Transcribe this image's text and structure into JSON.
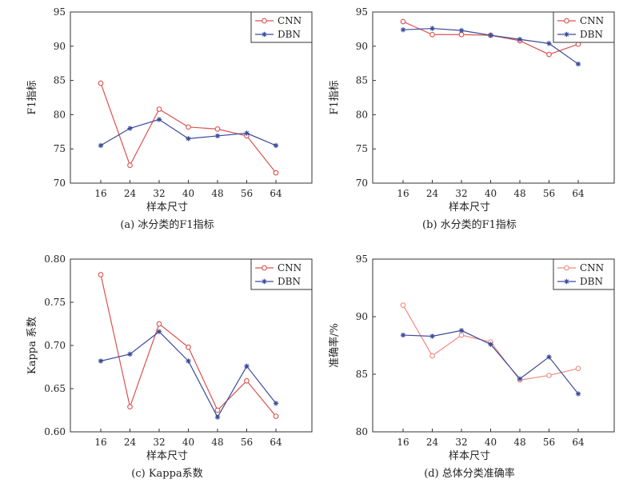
{
  "chart_data": [
    {
      "type": "line",
      "id": "a",
      "caption": "(a) 冰分类的F1指标",
      "xlabel": "样本尺寸",
      "ylabel": "F1指标",
      "categories": [
        "16",
        "24",
        "32",
        "40",
        "48",
        "56",
        "64"
      ],
      "ylim": [
        70,
        95
      ],
      "yticks": [
        "70",
        "75",
        "80",
        "85",
        "90",
        "95"
      ],
      "yticks_values": [
        70,
        75,
        80,
        85,
        90,
        95
      ],
      "legend": "top-right",
      "series": [
        {
          "name": "CNN",
          "color": "#d9534f",
          "marker": "circle",
          "values": [
            84.6,
            72.6,
            80.8,
            78.2,
            77.9,
            76.9,
            71.5
          ]
        },
        {
          "name": "DBN",
          "color": "#3b4a9a",
          "marker": "star",
          "values": [
            75.5,
            78.0,
            79.3,
            76.5,
            76.9,
            77.3,
            75.5
          ]
        }
      ]
    },
    {
      "type": "line",
      "id": "b",
      "caption": "(b) 水分类的F1指标",
      "xlabel": "样本尺寸",
      "ylabel": "F1指标",
      "categories": [
        "16",
        "24",
        "32",
        "40",
        "48",
        "56",
        "64"
      ],
      "ylim": [
        70,
        95
      ],
      "yticks": [
        "70",
        "75",
        "80",
        "85",
        "90",
        "95"
      ],
      "yticks_values": [
        70,
        75,
        80,
        85,
        90,
        95
      ],
      "legend": "top-right",
      "series": [
        {
          "name": "CNN",
          "color": "#d9534f",
          "marker": "circle",
          "values": [
            93.6,
            91.7,
            91.7,
            91.6,
            90.8,
            88.8,
            90.3
          ]
        },
        {
          "name": "DBN",
          "color": "#3b4a9a",
          "marker": "star",
          "values": [
            92.4,
            92.6,
            92.3,
            91.6,
            91.0,
            90.4,
            87.4
          ]
        }
      ]
    },
    {
      "type": "line",
      "id": "c",
      "caption": "(c) Kappa系数",
      "xlabel": "样本尺寸",
      "ylabel": "Kappa 系数",
      "categories": [
        "16",
        "24",
        "32",
        "40",
        "48",
        "56",
        "64"
      ],
      "ylim": [
        0.6,
        0.8
      ],
      "yticks": [
        "0.60",
        "0.65",
        "0.70",
        "0.75",
        "0.80"
      ],
      "yticks_values": [
        0.6,
        0.65,
        0.7,
        0.75,
        0.8
      ],
      "legend": "top-right",
      "series": [
        {
          "name": "CNN",
          "color": "#d9534f",
          "marker": "circle",
          "values": [
            0.782,
            0.629,
            0.725,
            0.698,
            0.625,
            0.659,
            0.618
          ]
        },
        {
          "name": "DBN",
          "color": "#3b4a9a",
          "marker": "star",
          "values": [
            0.682,
            0.69,
            0.716,
            0.682,
            0.617,
            0.676,
            0.633
          ]
        }
      ]
    },
    {
      "type": "line",
      "id": "d",
      "caption": "(d) 总体分类准确率",
      "xlabel": "样本尺寸",
      "ylabel": "准确率/%",
      "categories": [
        "16",
        "24",
        "32",
        "40",
        "48",
        "56",
        "64"
      ],
      "ylim": [
        80,
        95
      ],
      "yticks": [
        "80",
        "85",
        "90",
        "95"
      ],
      "yticks_values": [
        80,
        85,
        90,
        95
      ],
      "legend": "top-right",
      "series": [
        {
          "name": "CNN",
          "color": "#f08a80",
          "marker": "circle",
          "values": [
            91.0,
            86.6,
            88.4,
            87.8,
            84.5,
            84.9,
            85.5
          ]
        },
        {
          "name": "DBN",
          "color": "#3b4a9a",
          "marker": "star",
          "values": [
            88.4,
            88.3,
            88.8,
            87.6,
            84.6,
            86.5,
            83.3
          ]
        }
      ]
    }
  ]
}
